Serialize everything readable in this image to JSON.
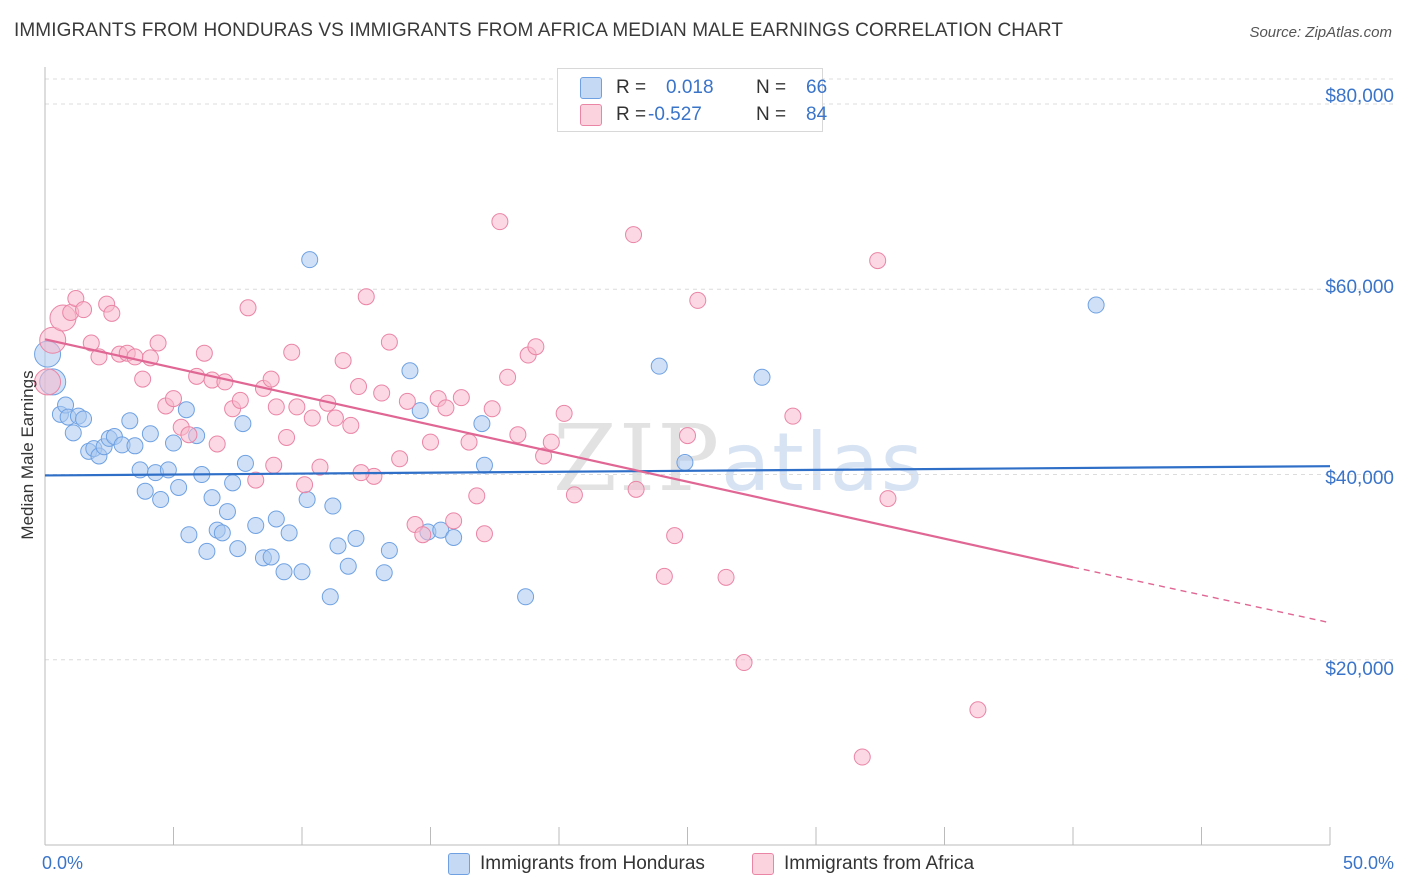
{
  "title": "IMMIGRANTS FROM HONDURAS VS IMMIGRANTS FROM AFRICA MEDIAN MALE EARNINGS CORRELATION CHART",
  "source": "Source: ZipAtlas.com",
  "watermark": {
    "zip": "ZIP",
    "atlas": "atlas"
  },
  "legend": {
    "rows": [
      {
        "r_label": "R =",
        "r_value": "0.018",
        "n_label": "N =",
        "n_value": "66",
        "color": "#a9c8f0"
      },
      {
        "r_label": "R =",
        "r_value": "-0.527",
        "n_label": "N =",
        "n_value": "84",
        "color": "#f7b8cc"
      }
    ]
  },
  "bottom_legend": [
    {
      "label": "Immigrants from Honduras",
      "color": "#a9c8f0"
    },
    {
      "label": "Immigrants from Africa",
      "color": "#f7b8cc"
    }
  ],
  "axes": {
    "ylabel": "Median Male Earnings",
    "x_min_label": "0.0%",
    "x_max_label": "50.0%",
    "y_ticks": [
      "$80,000",
      "$60,000",
      "$40,000",
      "$20,000"
    ]
  },
  "chart_data": {
    "type": "scatter",
    "xlim": [
      0,
      50
    ],
    "ylim": [
      0,
      84000
    ],
    "xlabel": "",
    "ylabel": "Median Male Earnings",
    "y_tick_values": [
      20000,
      40000,
      60000,
      80000
    ],
    "grid": true,
    "series": [
      {
        "name": "Immigrants from Honduras",
        "color": "#6fa1e2",
        "fill": "#a9c8f0",
        "trend": {
          "x": [
            0,
            50
          ],
          "y": [
            39900,
            40900
          ]
        },
        "points": [
          [
            0.1,
            53000
          ],
          [
            0.3,
            50000
          ],
          [
            0.6,
            46500
          ],
          [
            0.8,
            47500
          ],
          [
            0.9,
            46200
          ],
          [
            1.1,
            44500
          ],
          [
            1.3,
            46300
          ],
          [
            1.5,
            46000
          ],
          [
            1.7,
            42500
          ],
          [
            1.9,
            42800
          ],
          [
            2.1,
            42000
          ],
          [
            2.3,
            43000
          ],
          [
            2.5,
            43900
          ],
          [
            2.7,
            44100
          ],
          [
            3.0,
            43200
          ],
          [
            3.3,
            45800
          ],
          [
            3.5,
            43100
          ],
          [
            3.7,
            40500
          ],
          [
            3.9,
            38200
          ],
          [
            4.1,
            44400
          ],
          [
            4.3,
            40200
          ],
          [
            4.5,
            37300
          ],
          [
            4.8,
            40500
          ],
          [
            5.0,
            43400
          ],
          [
            5.2,
            38600
          ],
          [
            5.5,
            47000
          ],
          [
            5.6,
            33500
          ],
          [
            5.9,
            44200
          ],
          [
            6.1,
            40000
          ],
          [
            6.3,
            31700
          ],
          [
            6.5,
            37500
          ],
          [
            6.7,
            34000
          ],
          [
            6.9,
            33700
          ],
          [
            7.1,
            36000
          ],
          [
            7.3,
            39100
          ],
          [
            7.5,
            32000
          ],
          [
            7.7,
            45500
          ],
          [
            7.8,
            41200
          ],
          [
            8.2,
            34500
          ],
          [
            8.5,
            31000
          ],
          [
            8.8,
            31100
          ],
          [
            9.0,
            35200
          ],
          [
            9.3,
            29500
          ],
          [
            9.5,
            33700
          ],
          [
            10.0,
            29500
          ],
          [
            10.2,
            37300
          ],
          [
            10.3,
            63200
          ],
          [
            11.1,
            26800
          ],
          [
            11.2,
            36600
          ],
          [
            11.4,
            32300
          ],
          [
            11.8,
            30100
          ],
          [
            12.1,
            33100
          ],
          [
            13.2,
            29400
          ],
          [
            13.4,
            31800
          ],
          [
            14.2,
            51200
          ],
          [
            14.6,
            46900
          ],
          [
            14.9,
            33800
          ],
          [
            15.4,
            34000
          ],
          [
            15.9,
            33200
          ],
          [
            17.0,
            45500
          ],
          [
            17.1,
            41000
          ],
          [
            18.7,
            26800
          ],
          [
            23.9,
            51700
          ],
          [
            24.9,
            41300
          ],
          [
            27.9,
            50500
          ],
          [
            40.9,
            58300
          ]
        ]
      },
      {
        "name": "Immigrants from Africa",
        "color": "#ea85a6",
        "fill": "#f7b8cc",
        "trend": {
          "x": [
            0,
            40
          ],
          "y": [
            54600,
            30000
          ]
        },
        "trend_dashed": {
          "x": [
            40,
            50
          ],
          "y": [
            30000,
            24000
          ]
        },
        "points": [
          [
            0.1,
            50000
          ],
          [
            0.3,
            54500
          ],
          [
            0.7,
            56900
          ],
          [
            1.0,
            57500
          ],
          [
            1.2,
            59000
          ],
          [
            1.5,
            57800
          ],
          [
            1.8,
            54200
          ],
          [
            2.1,
            52700
          ],
          [
            2.4,
            58400
          ],
          [
            2.6,
            57400
          ],
          [
            2.9,
            53000
          ],
          [
            3.2,
            53100
          ],
          [
            3.5,
            52700
          ],
          [
            3.8,
            50300
          ],
          [
            4.1,
            52600
          ],
          [
            4.4,
            54200
          ],
          [
            4.7,
            47400
          ],
          [
            5.0,
            48200
          ],
          [
            5.3,
            45100
          ],
          [
            5.6,
            44300
          ],
          [
            5.9,
            50600
          ],
          [
            6.2,
            53100
          ],
          [
            6.5,
            50200
          ],
          [
            6.7,
            43300
          ],
          [
            7.0,
            50000
          ],
          [
            7.3,
            47100
          ],
          [
            7.6,
            48000
          ],
          [
            7.9,
            58000
          ],
          [
            8.2,
            39400
          ],
          [
            8.5,
            49300
          ],
          [
            8.8,
            50300
          ],
          [
            9.0,
            47300
          ],
          [
            9.4,
            44000
          ],
          [
            9.6,
            53200
          ],
          [
            9.8,
            47300
          ],
          [
            10.1,
            38900
          ],
          [
            10.4,
            46100
          ],
          [
            10.7,
            40800
          ],
          [
            11.0,
            47700
          ],
          [
            11.3,
            46100
          ],
          [
            11.6,
            52300
          ],
          [
            11.9,
            45300
          ],
          [
            12.2,
            49500
          ],
          [
            12.5,
            59200
          ],
          [
            12.8,
            39800
          ],
          [
            13.1,
            48800
          ],
          [
            13.4,
            54300
          ],
          [
            13.8,
            41700
          ],
          [
            14.1,
            47900
          ],
          [
            14.4,
            34600
          ],
          [
            14.7,
            33500
          ],
          [
            15.0,
            43500
          ],
          [
            15.3,
            48200
          ],
          [
            15.6,
            47200
          ],
          [
            15.9,
            35000
          ],
          [
            16.2,
            48300
          ],
          [
            16.5,
            43500
          ],
          [
            16.8,
            37700
          ],
          [
            17.1,
            33600
          ],
          [
            17.4,
            47100
          ],
          [
            17.7,
            67300
          ],
          [
            18.0,
            50500
          ],
          [
            18.4,
            44300
          ],
          [
            18.8,
            52900
          ],
          [
            19.1,
            53800
          ],
          [
            19.4,
            42000
          ],
          [
            19.7,
            43500
          ],
          [
            20.2,
            46600
          ],
          [
            20.6,
            37800
          ],
          [
            22.9,
            65900
          ],
          [
            23.0,
            38400
          ],
          [
            24.1,
            29000
          ],
          [
            24.5,
            33400
          ],
          [
            25.0,
            44200
          ],
          [
            25.4,
            58800
          ],
          [
            26.5,
            28900
          ],
          [
            27.2,
            19700
          ],
          [
            29.1,
            46300
          ],
          [
            31.8,
            9500
          ],
          [
            32.4,
            63100
          ],
          [
            32.8,
            37400
          ],
          [
            36.3,
            14600
          ],
          [
            12.3,
            40200
          ],
          [
            8.9,
            41000
          ]
        ]
      }
    ]
  }
}
